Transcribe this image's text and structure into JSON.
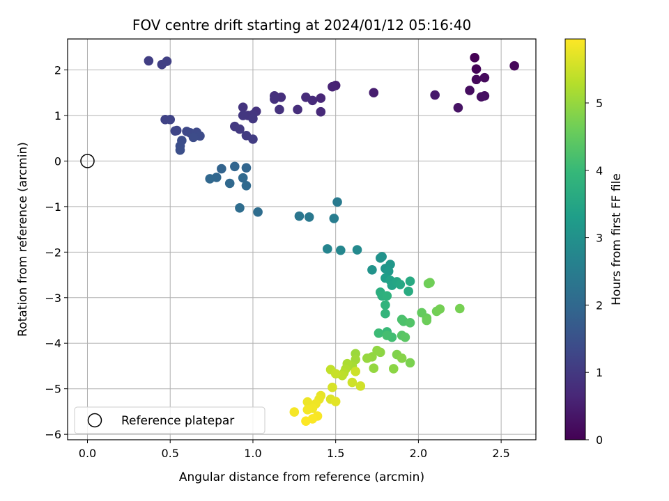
{
  "chart_data": {
    "type": "scatter",
    "title": "FOV centre drift starting at 2024/01/12 05:16:40",
    "xlabel": "Angular distance from reference (arcmin)",
    "ylabel": "Rotation from reference (arcmin)",
    "xlim": [
      -0.12,
      2.71
    ],
    "ylim": [
      -6.12,
      2.68
    ],
    "x_ticks": [
      0.0,
      0.5,
      1.0,
      1.5,
      2.0,
      2.5
    ],
    "x_tick_labels": [
      "0.0",
      "0.5",
      "1.0",
      "1.5",
      "2.0",
      "2.5"
    ],
    "y_ticks": [
      2,
      1,
      0,
      -1,
      -2,
      -3,
      -4,
      -5,
      -6
    ],
    "y_tick_labels": [
      "2",
      "1",
      "0",
      "−1",
      "−2",
      "−3",
      "−4",
      "−5",
      "−6"
    ],
    "grid": true,
    "legend": {
      "position": "lower-left",
      "entries": [
        "Reference platepar"
      ]
    },
    "reference_point": {
      "x": 0.0,
      "y": 0.0,
      "label": "Reference platepar"
    },
    "colorbar": {
      "label": "Hours from first FF file",
      "colormap": "viridis",
      "range": [
        0,
        5.95
      ],
      "ticks": [
        0,
        1,
        2,
        3,
        4,
        5
      ],
      "tick_labels": [
        "0",
        "1",
        "2",
        "3",
        "4",
        "5"
      ]
    },
    "viridis_stops": [
      "#440154",
      "#482878",
      "#3e4989",
      "#31688e",
      "#26828e",
      "#1f9e89",
      "#35b779",
      "#6ece58",
      "#b5de2b",
      "#fde725"
    ],
    "points": [
      {
        "x": 2.34,
        "y": 2.27,
        "t": 0.0
      },
      {
        "x": 2.35,
        "y": 2.02,
        "t": 0.05
      },
      {
        "x": 2.58,
        "y": 2.09,
        "t": 0.1
      },
      {
        "x": 2.35,
        "y": 1.79,
        "t": 0.12
      },
      {
        "x": 2.4,
        "y": 1.83,
        "t": 0.15
      },
      {
        "x": 2.31,
        "y": 1.55,
        "t": 0.2
      },
      {
        "x": 2.4,
        "y": 1.43,
        "t": 0.22
      },
      {
        "x": 2.38,
        "y": 1.41,
        "t": 0.25
      },
      {
        "x": 2.24,
        "y": 1.17,
        "t": 0.3
      },
      {
        "x": 2.1,
        "y": 1.45,
        "t": 0.4
      },
      {
        "x": 1.73,
        "y": 1.5,
        "t": 0.5
      },
      {
        "x": 1.5,
        "y": 1.66,
        "t": 0.55
      },
      {
        "x": 1.48,
        "y": 1.63,
        "t": 0.6
      },
      {
        "x": 1.41,
        "y": 1.38,
        "t": 0.65
      },
      {
        "x": 1.41,
        "y": 1.08,
        "t": 0.7
      },
      {
        "x": 1.36,
        "y": 1.33,
        "t": 0.72
      },
      {
        "x": 1.32,
        "y": 1.4,
        "t": 0.75
      },
      {
        "x": 1.27,
        "y": 1.13,
        "t": 0.78
      },
      {
        "x": 1.17,
        "y": 1.4,
        "t": 0.8
      },
      {
        "x": 1.13,
        "y": 1.43,
        "t": 0.82
      },
      {
        "x": 1.13,
        "y": 1.36,
        "t": 0.84
      },
      {
        "x": 1.16,
        "y": 1.13,
        "t": 0.86
      },
      {
        "x": 1.02,
        "y": 1.09,
        "t": 0.88
      },
      {
        "x": 0.94,
        "y": 1.18,
        "t": 0.9
      },
      {
        "x": 0.97,
        "y": 1.0,
        "t": 0.92
      },
      {
        "x": 1.0,
        "y": 1.02,
        "t": 0.94
      },
      {
        "x": 0.94,
        "y": 1.0,
        "t": 0.96
      },
      {
        "x": 1.0,
        "y": 0.93,
        "t": 0.98
      },
      {
        "x": 0.89,
        "y": 0.76,
        "t": 1.0
      },
      {
        "x": 0.92,
        "y": 0.7,
        "t": 1.02
      },
      {
        "x": 0.96,
        "y": 0.56,
        "t": 1.04
      },
      {
        "x": 1.0,
        "y": 0.48,
        "t": 1.06
      },
      {
        "x": 0.37,
        "y": 2.2,
        "t": 1.1
      },
      {
        "x": 0.45,
        "y": 2.12,
        "t": 1.12
      },
      {
        "x": 0.48,
        "y": 2.19,
        "t": 1.14
      },
      {
        "x": 0.47,
        "y": 0.91,
        "t": 1.2
      },
      {
        "x": 0.5,
        "y": 0.91,
        "t": 1.22
      },
      {
        "x": 0.54,
        "y": 0.67,
        "t": 1.25
      },
      {
        "x": 0.53,
        "y": 0.66,
        "t": 1.27
      },
      {
        "x": 0.6,
        "y": 0.65,
        "t": 1.3
      },
      {
        "x": 0.62,
        "y": 0.62,
        "t": 1.32
      },
      {
        "x": 0.66,
        "y": 0.63,
        "t": 1.34
      },
      {
        "x": 0.68,
        "y": 0.55,
        "t": 1.36
      },
      {
        "x": 0.64,
        "y": 0.52,
        "t": 1.38
      },
      {
        "x": 0.57,
        "y": 0.45,
        "t": 1.4
      },
      {
        "x": 0.56,
        "y": 0.33,
        "t": 1.42
      },
      {
        "x": 0.56,
        "y": 0.24,
        "t": 1.44
      },
      {
        "x": 0.81,
        "y": -0.17,
        "t": 1.9
      },
      {
        "x": 0.89,
        "y": -0.12,
        "t": 1.92
      },
      {
        "x": 0.96,
        "y": -0.15,
        "t": 1.94
      },
      {
        "x": 0.78,
        "y": -0.36,
        "t": 1.96
      },
      {
        "x": 0.74,
        "y": -0.39,
        "t": 1.98
      },
      {
        "x": 0.86,
        "y": -0.49,
        "t": 2.0
      },
      {
        "x": 0.94,
        "y": -0.37,
        "t": 2.02
      },
      {
        "x": 0.96,
        "y": -0.54,
        "t": 2.04
      },
      {
        "x": 0.92,
        "y": -1.03,
        "t": 2.1
      },
      {
        "x": 1.03,
        "y": -1.12,
        "t": 2.12
      },
      {
        "x": 1.28,
        "y": -1.21,
        "t": 2.35
      },
      {
        "x": 1.34,
        "y": -1.23,
        "t": 2.4
      },
      {
        "x": 1.51,
        "y": -0.9,
        "t": 2.45
      },
      {
        "x": 1.49,
        "y": -1.26,
        "t": 2.5
      },
      {
        "x": 1.45,
        "y": -1.93,
        "t": 2.7
      },
      {
        "x": 1.53,
        "y": -1.96,
        "t": 2.75
      },
      {
        "x": 1.63,
        "y": -1.95,
        "t": 2.8
      },
      {
        "x": 1.77,
        "y": -2.13,
        "t": 3.0
      },
      {
        "x": 1.78,
        "y": -2.1,
        "t": 3.02
      },
      {
        "x": 1.72,
        "y": -2.39,
        "t": 3.05
      },
      {
        "x": 1.8,
        "y": -2.36,
        "t": 3.1
      },
      {
        "x": 1.83,
        "y": -2.27,
        "t": 3.15
      },
      {
        "x": 1.82,
        "y": -2.42,
        "t": 3.2
      },
      {
        "x": 1.8,
        "y": -2.57,
        "t": 3.3
      },
      {
        "x": 1.83,
        "y": -2.62,
        "t": 3.4
      },
      {
        "x": 1.84,
        "y": -2.73,
        "t": 3.45
      },
      {
        "x": 1.87,
        "y": -2.65,
        "t": 3.5
      },
      {
        "x": 1.89,
        "y": -2.71,
        "t": 3.55
      },
      {
        "x": 1.95,
        "y": -2.64,
        "t": 3.6
      },
      {
        "x": 1.94,
        "y": -2.86,
        "t": 3.65
      },
      {
        "x": 1.77,
        "y": -2.88,
        "t": 3.7
      },
      {
        "x": 1.78,
        "y": -2.96,
        "t": 3.75
      },
      {
        "x": 1.81,
        "y": -2.96,
        "t": 3.8
      },
      {
        "x": 1.8,
        "y": -3.16,
        "t": 3.85
      },
      {
        "x": 1.8,
        "y": -3.35,
        "t": 3.9
      },
      {
        "x": 1.81,
        "y": -3.75,
        "t": 4.0
      },
      {
        "x": 1.76,
        "y": -3.78,
        "t": 4.05
      },
      {
        "x": 1.84,
        "y": -3.87,
        "t": 4.1
      },
      {
        "x": 1.81,
        "y": -3.83,
        "t": 4.15
      },
      {
        "x": 1.9,
        "y": -3.48,
        "t": 4.2
      },
      {
        "x": 1.91,
        "y": -3.52,
        "t": 4.25
      },
      {
        "x": 1.95,
        "y": -3.55,
        "t": 4.3
      },
      {
        "x": 1.9,
        "y": -3.83,
        "t": 4.35
      },
      {
        "x": 1.92,
        "y": -3.87,
        "t": 4.4
      },
      {
        "x": 2.02,
        "y": -3.33,
        "t": 4.5
      },
      {
        "x": 2.05,
        "y": -3.45,
        "t": 4.55
      },
      {
        "x": 2.05,
        "y": -3.5,
        "t": 4.6
      },
      {
        "x": 2.06,
        "y": -2.69,
        "t": 4.62
      },
      {
        "x": 2.07,
        "y": -2.67,
        "t": 4.64
      },
      {
        "x": 2.11,
        "y": -3.3,
        "t": 4.66
      },
      {
        "x": 2.13,
        "y": -3.25,
        "t": 4.68
      },
      {
        "x": 2.25,
        "y": -3.24,
        "t": 4.7
      },
      {
        "x": 1.95,
        "y": -4.43,
        "t": 4.75
      },
      {
        "x": 1.87,
        "y": -4.25,
        "t": 4.8
      },
      {
        "x": 1.9,
        "y": -4.33,
        "t": 4.85
      },
      {
        "x": 1.85,
        "y": -4.56,
        "t": 4.9
      },
      {
        "x": 1.77,
        "y": -4.2,
        "t": 4.92
      },
      {
        "x": 1.75,
        "y": -4.16,
        "t": 4.94
      },
      {
        "x": 1.72,
        "y": -4.3,
        "t": 4.96
      },
      {
        "x": 1.73,
        "y": -4.55,
        "t": 4.98
      },
      {
        "x": 1.69,
        "y": -4.33,
        "t": 5.0
      },
      {
        "x": 1.62,
        "y": -4.23,
        "t": 5.05
      },
      {
        "x": 1.62,
        "y": -4.36,
        "t": 5.1
      },
      {
        "x": 1.6,
        "y": -4.5,
        "t": 5.15
      },
      {
        "x": 1.57,
        "y": -4.45,
        "t": 5.2
      },
      {
        "x": 1.56,
        "y": -4.57,
        "t": 5.25
      },
      {
        "x": 1.55,
        "y": -4.65,
        "t": 5.3
      },
      {
        "x": 1.54,
        "y": -4.71,
        "t": 5.35
      },
      {
        "x": 1.47,
        "y": -4.58,
        "t": 5.4
      },
      {
        "x": 1.5,
        "y": -4.67,
        "t": 5.45
      },
      {
        "x": 1.62,
        "y": -4.62,
        "t": 5.5
      },
      {
        "x": 1.6,
        "y": -4.86,
        "t": 5.52
      },
      {
        "x": 1.65,
        "y": -4.94,
        "t": 5.54
      },
      {
        "x": 1.48,
        "y": -4.97,
        "t": 5.6
      },
      {
        "x": 1.47,
        "y": -5.23,
        "t": 5.65
      },
      {
        "x": 1.5,
        "y": -5.28,
        "t": 5.7
      },
      {
        "x": 1.41,
        "y": -5.15,
        "t": 5.75
      },
      {
        "x": 1.4,
        "y": -5.23,
        "t": 5.78
      },
      {
        "x": 1.33,
        "y": -5.29,
        "t": 5.8
      },
      {
        "x": 1.38,
        "y": -5.33,
        "t": 5.82
      },
      {
        "x": 1.36,
        "y": -5.43,
        "t": 5.84
      },
      {
        "x": 1.33,
        "y": -5.46,
        "t": 5.86
      },
      {
        "x": 1.25,
        "y": -5.51,
        "t": 5.88
      },
      {
        "x": 1.39,
        "y": -5.6,
        "t": 5.9
      },
      {
        "x": 1.36,
        "y": -5.66,
        "t": 5.92
      },
      {
        "x": 1.32,
        "y": -5.71,
        "t": 5.94
      }
    ]
  }
}
